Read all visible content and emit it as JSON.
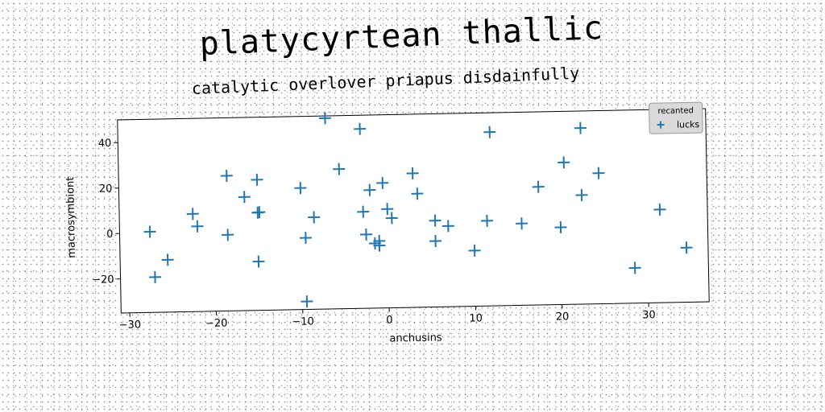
{
  "chart_data": {
    "type": "scatter",
    "title": "platycyrtean thallic",
    "subtitle": "catalytic overlover priapus disdainfully",
    "xlabel": "anchusins",
    "ylabel": "macrosymbiont",
    "xlim": [
      -31,
      37
    ],
    "ylim": [
      -35,
      50
    ],
    "xticks": [
      -30,
      -20,
      -10,
      0,
      10,
      20,
      30
    ],
    "yticks": [
      -20,
      0,
      20,
      40
    ],
    "grid": false,
    "legend": {
      "title": "recanted",
      "placement": "top-right"
    },
    "series": [
      {
        "name": "lucks",
        "marker": "plus",
        "color": "#1f77b4",
        "points": [
          [
            -27.5,
            0.5
          ],
          [
            -27,
            -19.5
          ],
          [
            -25.5,
            -12
          ],
          [
            -22.5,
            8
          ],
          [
            -22,
            2.5
          ],
          [
            -18.5,
            24.5
          ],
          [
            -18.5,
            -1.5
          ],
          [
            -16.5,
            15
          ],
          [
            -15,
            22.5
          ],
          [
            -15,
            8
          ],
          [
            -14.8,
            8.2
          ],
          [
            -15,
            -13.5
          ],
          [
            -10,
            18.5
          ],
          [
            -9.5,
            -3.5
          ],
          [
            -9.5,
            -31.5
          ],
          [
            -8.5,
            5.5
          ],
          [
            -7,
            49
          ],
          [
            -5.5,
            26.5
          ],
          [
            -3,
            44
          ],
          [
            -2.8,
            7.5
          ],
          [
            -2.5,
            -2.5
          ],
          [
            -2,
            17
          ],
          [
            -1.5,
            -6.5
          ],
          [
            -1,
            -5.5
          ],
          [
            -1,
            -7.5
          ],
          [
            -0.5,
            20
          ],
          [
            0,
            8.5
          ],
          [
            0.5,
            4.5
          ],
          [
            3,
            24
          ],
          [
            3.5,
            15
          ],
          [
            5.5,
            3
          ],
          [
            5.5,
            -6
          ],
          [
            7,
            0.5
          ],
          [
            10,
            -10.5
          ],
          [
            11.5,
            2.5
          ],
          [
            12,
            41.5
          ],
          [
            15.5,
            1
          ],
          [
            17.5,
            17
          ],
          [
            20,
            -1
          ],
          [
            20.5,
            27.5
          ],
          [
            22.5,
            13
          ],
          [
            22.5,
            42.5
          ],
          [
            24.5,
            22.5
          ],
          [
            28.5,
            -19.5
          ],
          [
            31.5,
            6
          ],
          [
            34.5,
            -11
          ]
        ]
      }
    ]
  }
}
